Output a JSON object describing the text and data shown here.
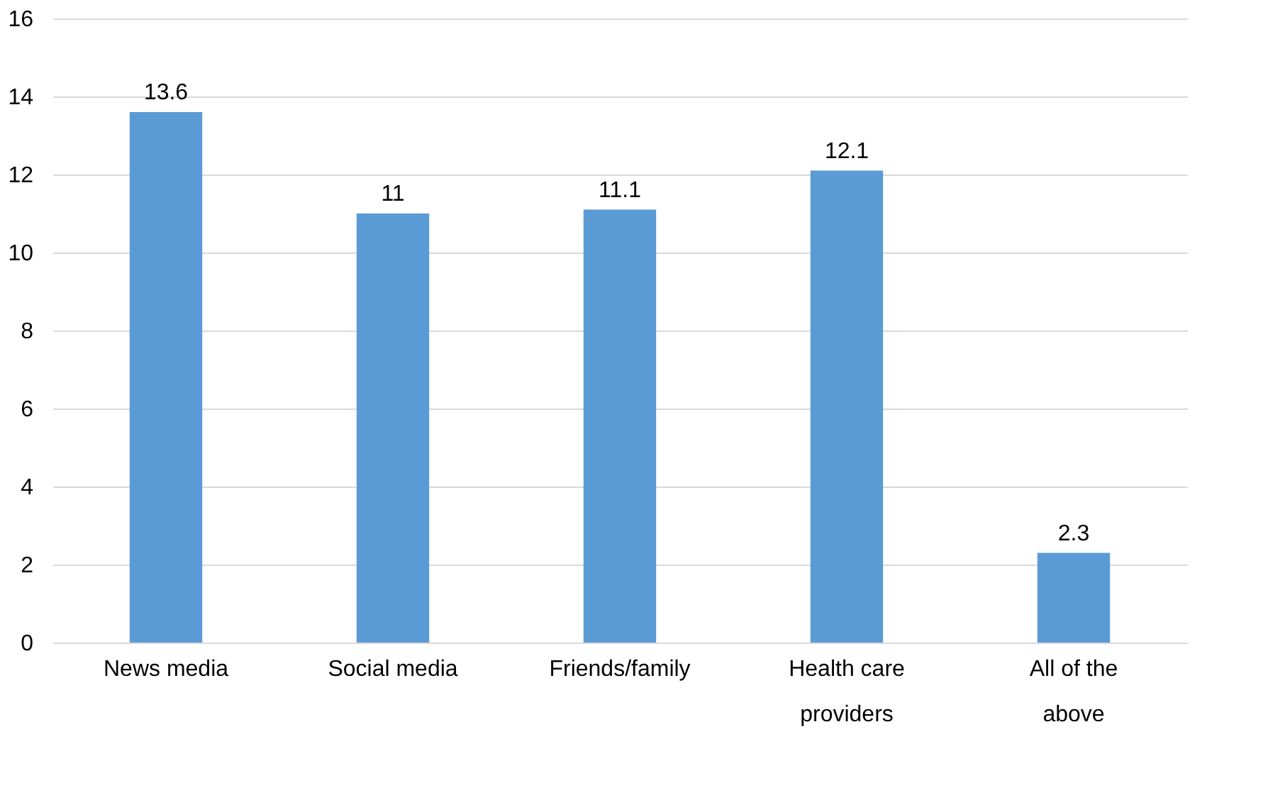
{
  "chart_data": {
    "type": "bar",
    "categories": [
      "News media",
      "Social media",
      "Friends/family",
      "Health care providers",
      "All of the above"
    ],
    "values": [
      13.6,
      11,
      11.1,
      12.1,
      2.3
    ],
    "color": "#5b9bd5",
    "ylim": [
      0,
      16
    ],
    "yticks": [
      0,
      2,
      4,
      6,
      8,
      10,
      12,
      14,
      16
    ],
    "grid": "y",
    "data_labels": true
  }
}
